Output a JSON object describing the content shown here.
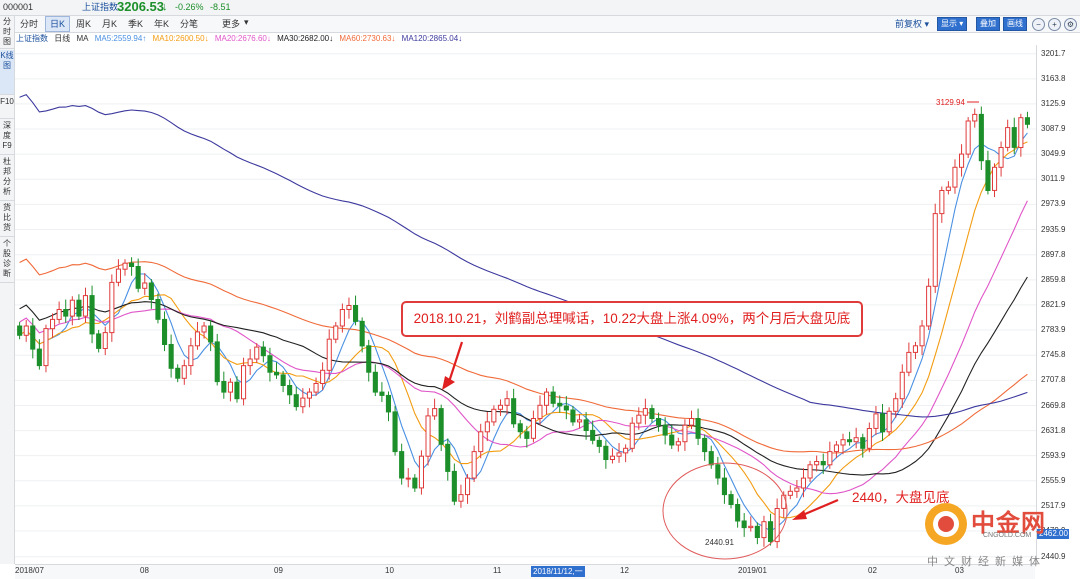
{
  "header": {
    "code": "000001",
    "name": "上证指数",
    "price": "3206.53",
    "arrow": "↓",
    "pct": "-0.26%",
    "change": "-8.51"
  },
  "tabs": [
    "分时",
    "日K",
    "周K",
    "月K",
    "季K",
    "年K",
    "分笔",
    "更多"
  ],
  "toolbar": {
    "fuquan": "前复权",
    "xianshi": "显示",
    "diejia": "叠加",
    "huaxian": "画线"
  },
  "sidebar": [
    "分时图",
    "K线图",
    "F10",
    "深度F9",
    "杜邦分析",
    "货比货",
    "个股诊断"
  ],
  "ma_bar": {
    "index": "上证指数",
    "period": "日线",
    "ma": "MA",
    "ma5": "MA5:2559.94↑",
    "ma10": "MA10:2600.50↓",
    "ma20": "MA20:2676.60↓",
    "ma30": "MA30:2682.00↓",
    "ma60": "MA60:2730.63↓",
    "ma120": "MA120:2865.04↓"
  },
  "colors": {
    "up": "#e03b3b",
    "down": "#1c8f2a",
    "ma5": "#4a90e2",
    "ma10": "#f39c12",
    "ma20": "#e056c9",
    "ma30": "#222222",
    "ma60": "#f06b3a",
    "ma120": "#3d3a9e"
  },
  "annotations": {
    "main": "2018.10.21，刘鹤副总理喊话，10.22大盘上涨4.09%，两个月后大盘见底",
    "bottom": "2440，大盘见底",
    "low_label": "2440.91",
    "high_label": "3129.94"
  },
  "watermark": {
    "main": "中金网",
    "url": "CNGOLD.COM",
    "sub": "中文财经新媒体"
  },
  "y_labels": [
    "3201.7",
    "3163.8",
    "3125.9",
    "3087.9",
    "3049.9",
    "3011.9",
    "2973.9",
    "2935.9",
    "2897.8",
    "2859.8",
    "2821.9",
    "2783.9",
    "2745.8",
    "2707.8",
    "2669.8",
    "2631.8",
    "2593.9",
    "2555.9",
    "2517.9",
    "2479.9",
    "2440.9"
  ],
  "current_price_tag": "2462.00",
  "x_labels": [
    "2018/07",
    "08",
    "09",
    "10",
    "11",
    "2018/11/12,一",
    "12",
    "2019/01",
    "02",
    "03"
  ],
  "chart_data": {
    "type": "candlestick",
    "title": "上证指数 日线",
    "ylim": [
      2430,
      3215
    ],
    "y_ticks": [
      3201.7,
      3163.8,
      3125.9,
      3087.9,
      3049.9,
      3011.9,
      2973.9,
      2935.9,
      2897.8,
      2859.8,
      2821.9,
      2783.9,
      2745.8,
      2707.8,
      2669.8,
      2631.8,
      2593.9,
      2555.9,
      2517.9,
      2479.9,
      2440.9
    ],
    "closes": [
      2776,
      2790,
      2755,
      2730,
      2786,
      2800,
      2815,
      2805,
      2829,
      2805,
      2836,
      2778,
      2756,
      2780,
      2856,
      2876,
      2885,
      2880,
      2847,
      2855,
      2830,
      2800,
      2762,
      2726,
      2711,
      2730,
      2760,
      2781,
      2790,
      2766,
      2706,
      2690,
      2705,
      2680,
      2730,
      2740,
      2758,
      2745,
      2720,
      2716,
      2700,
      2686,
      2668,
      2681,
      2690,
      2703,
      2723,
      2770,
      2790,
      2815,
      2821,
      2797,
      2760,
      2720,
      2690,
      2685,
      2660,
      2600,
      2560,
      2560,
      2545,
      2593,
      2654,
      2665,
      2611,
      2570,
      2525,
      2535,
      2560,
      2600,
      2630,
      2645,
      2664,
      2670,
      2680,
      2642,
      2630,
      2620,
      2650,
      2670,
      2690,
      2673,
      2669,
      2663,
      2645,
      2648,
      2632,
      2617,
      2608,
      2588,
      2593,
      2598,
      2605,
      2643,
      2655,
      2665,
      2650,
      2640,
      2625,
      2610,
      2615,
      2640,
      2650,
      2620,
      2600,
      2580,
      2560,
      2535,
      2520,
      2495,
      2485,
      2487,
      2470,
      2494,
      2464,
      2514,
      2534,
      2540,
      2545,
      2560,
      2580,
      2585,
      2580,
      2600,
      2610,
      2618,
      2615,
      2621,
      2605,
      2635,
      2657,
      2630,
      2661,
      2680,
      2720,
      2750,
      2760,
      2790,
      2850,
      2960,
      2995,
      3000,
      3030,
      3050,
      3100,
      3110,
      3040,
      2995,
      3030,
      3060,
      3090,
      3060,
      3105,
      3095
    ],
    "opens": [
      2790,
      2776,
      2790,
      2755,
      2730,
      2786,
      2800,
      2815,
      2805,
      2829,
      2805,
      2836,
      2778,
      2756,
      2780,
      2856,
      2876,
      2885,
      2880,
      2847,
      2855,
      2830,
      2800,
      2762,
      2726,
      2711,
      2730,
      2760,
      2781,
      2790,
      2766,
      2706,
      2690,
      2705,
      2680,
      2730,
      2740,
      2758,
      2745,
      2720,
      2716,
      2700,
      2686,
      2668,
      2681,
      2690,
      2703,
      2723,
      2770,
      2790,
      2815,
      2821,
      2797,
      2760,
      2720,
      2690,
      2685,
      2660,
      2600,
      2560,
      2560,
      2545,
      2593,
      2654,
      2665,
      2611,
      2570,
      2525,
      2535,
      2560,
      2600,
      2630,
      2645,
      2664,
      2670,
      2680,
      2642,
      2630,
      2620,
      2650,
      2670,
      2690,
      2673,
      2669,
      2663,
      2645,
      2648,
      2632,
      2617,
      2608,
      2588,
      2593,
      2598,
      2605,
      2643,
      2655,
      2665,
      2650,
      2640,
      2625,
      2610,
      2615,
      2640,
      2650,
      2620,
      2600,
      2580,
      2560,
      2535,
      2520,
      2495,
      2485,
      2487,
      2470,
      2494,
      2464,
      2514,
      2534,
      2540,
      2545,
      2560,
      2580,
      2585,
      2580,
      2600,
      2610,
      2618,
      2615,
      2621,
      2605,
      2635,
      2657,
      2630,
      2661,
      2680,
      2720,
      2750,
      2760,
      2790,
      2850,
      2960,
      2995,
      3000,
      3030,
      3050,
      3100,
      3110,
      3040,
      2995,
      3030,
      3060,
      3090,
      3060,
      3105
    ],
    "ma_series": [
      {
        "name": "MA5",
        "color": "#4a90e2"
      },
      {
        "name": "MA10",
        "color": "#f39c12"
      },
      {
        "name": "MA20",
        "color": "#e056c9"
      },
      {
        "name": "MA30",
        "color": "#222222"
      },
      {
        "name": "MA60",
        "color": "#f06b3a"
      },
      {
        "name": "MA120",
        "color": "#3d3a9e"
      }
    ]
  }
}
